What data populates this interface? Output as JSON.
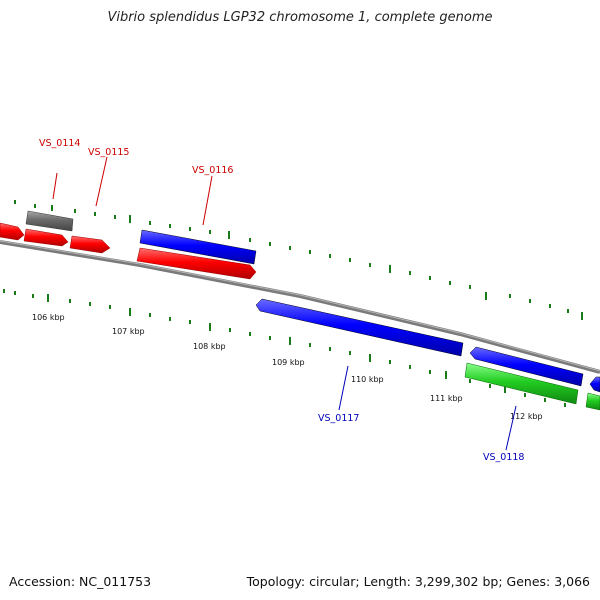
{
  "title": "Vibrio splendidus LGP32 chromosome 1, complete genome",
  "footer": {
    "accession": "Accession: NC_011753",
    "summary": "Topology: circular; Length: 3,299,302 bp; Genes: 3,066"
  },
  "colors": {
    "forward": "#ff0000",
    "reverse": "#0000ff",
    "other": "#00cc00",
    "pseudo": "#666666",
    "backbone": "#808080",
    "ticks": "#1a7a1a"
  },
  "scale_labels": [
    "106 kbp",
    "107 kbp",
    "108 kbp",
    "109 kbp",
    "110 kbp",
    "111 kbp",
    "112 kbp"
  ],
  "gene_labels": [
    {
      "text": "VS_0114",
      "color": "#cc0000"
    },
    {
      "text": "VS_0115",
      "color": "#cc0000"
    },
    {
      "text": "VS_0116",
      "color": "#cc0000"
    },
    {
      "text": "VS_0117",
      "color": "#0000bb"
    },
    {
      "text": "VS_0118",
      "color": "#0000bb"
    }
  ]
}
